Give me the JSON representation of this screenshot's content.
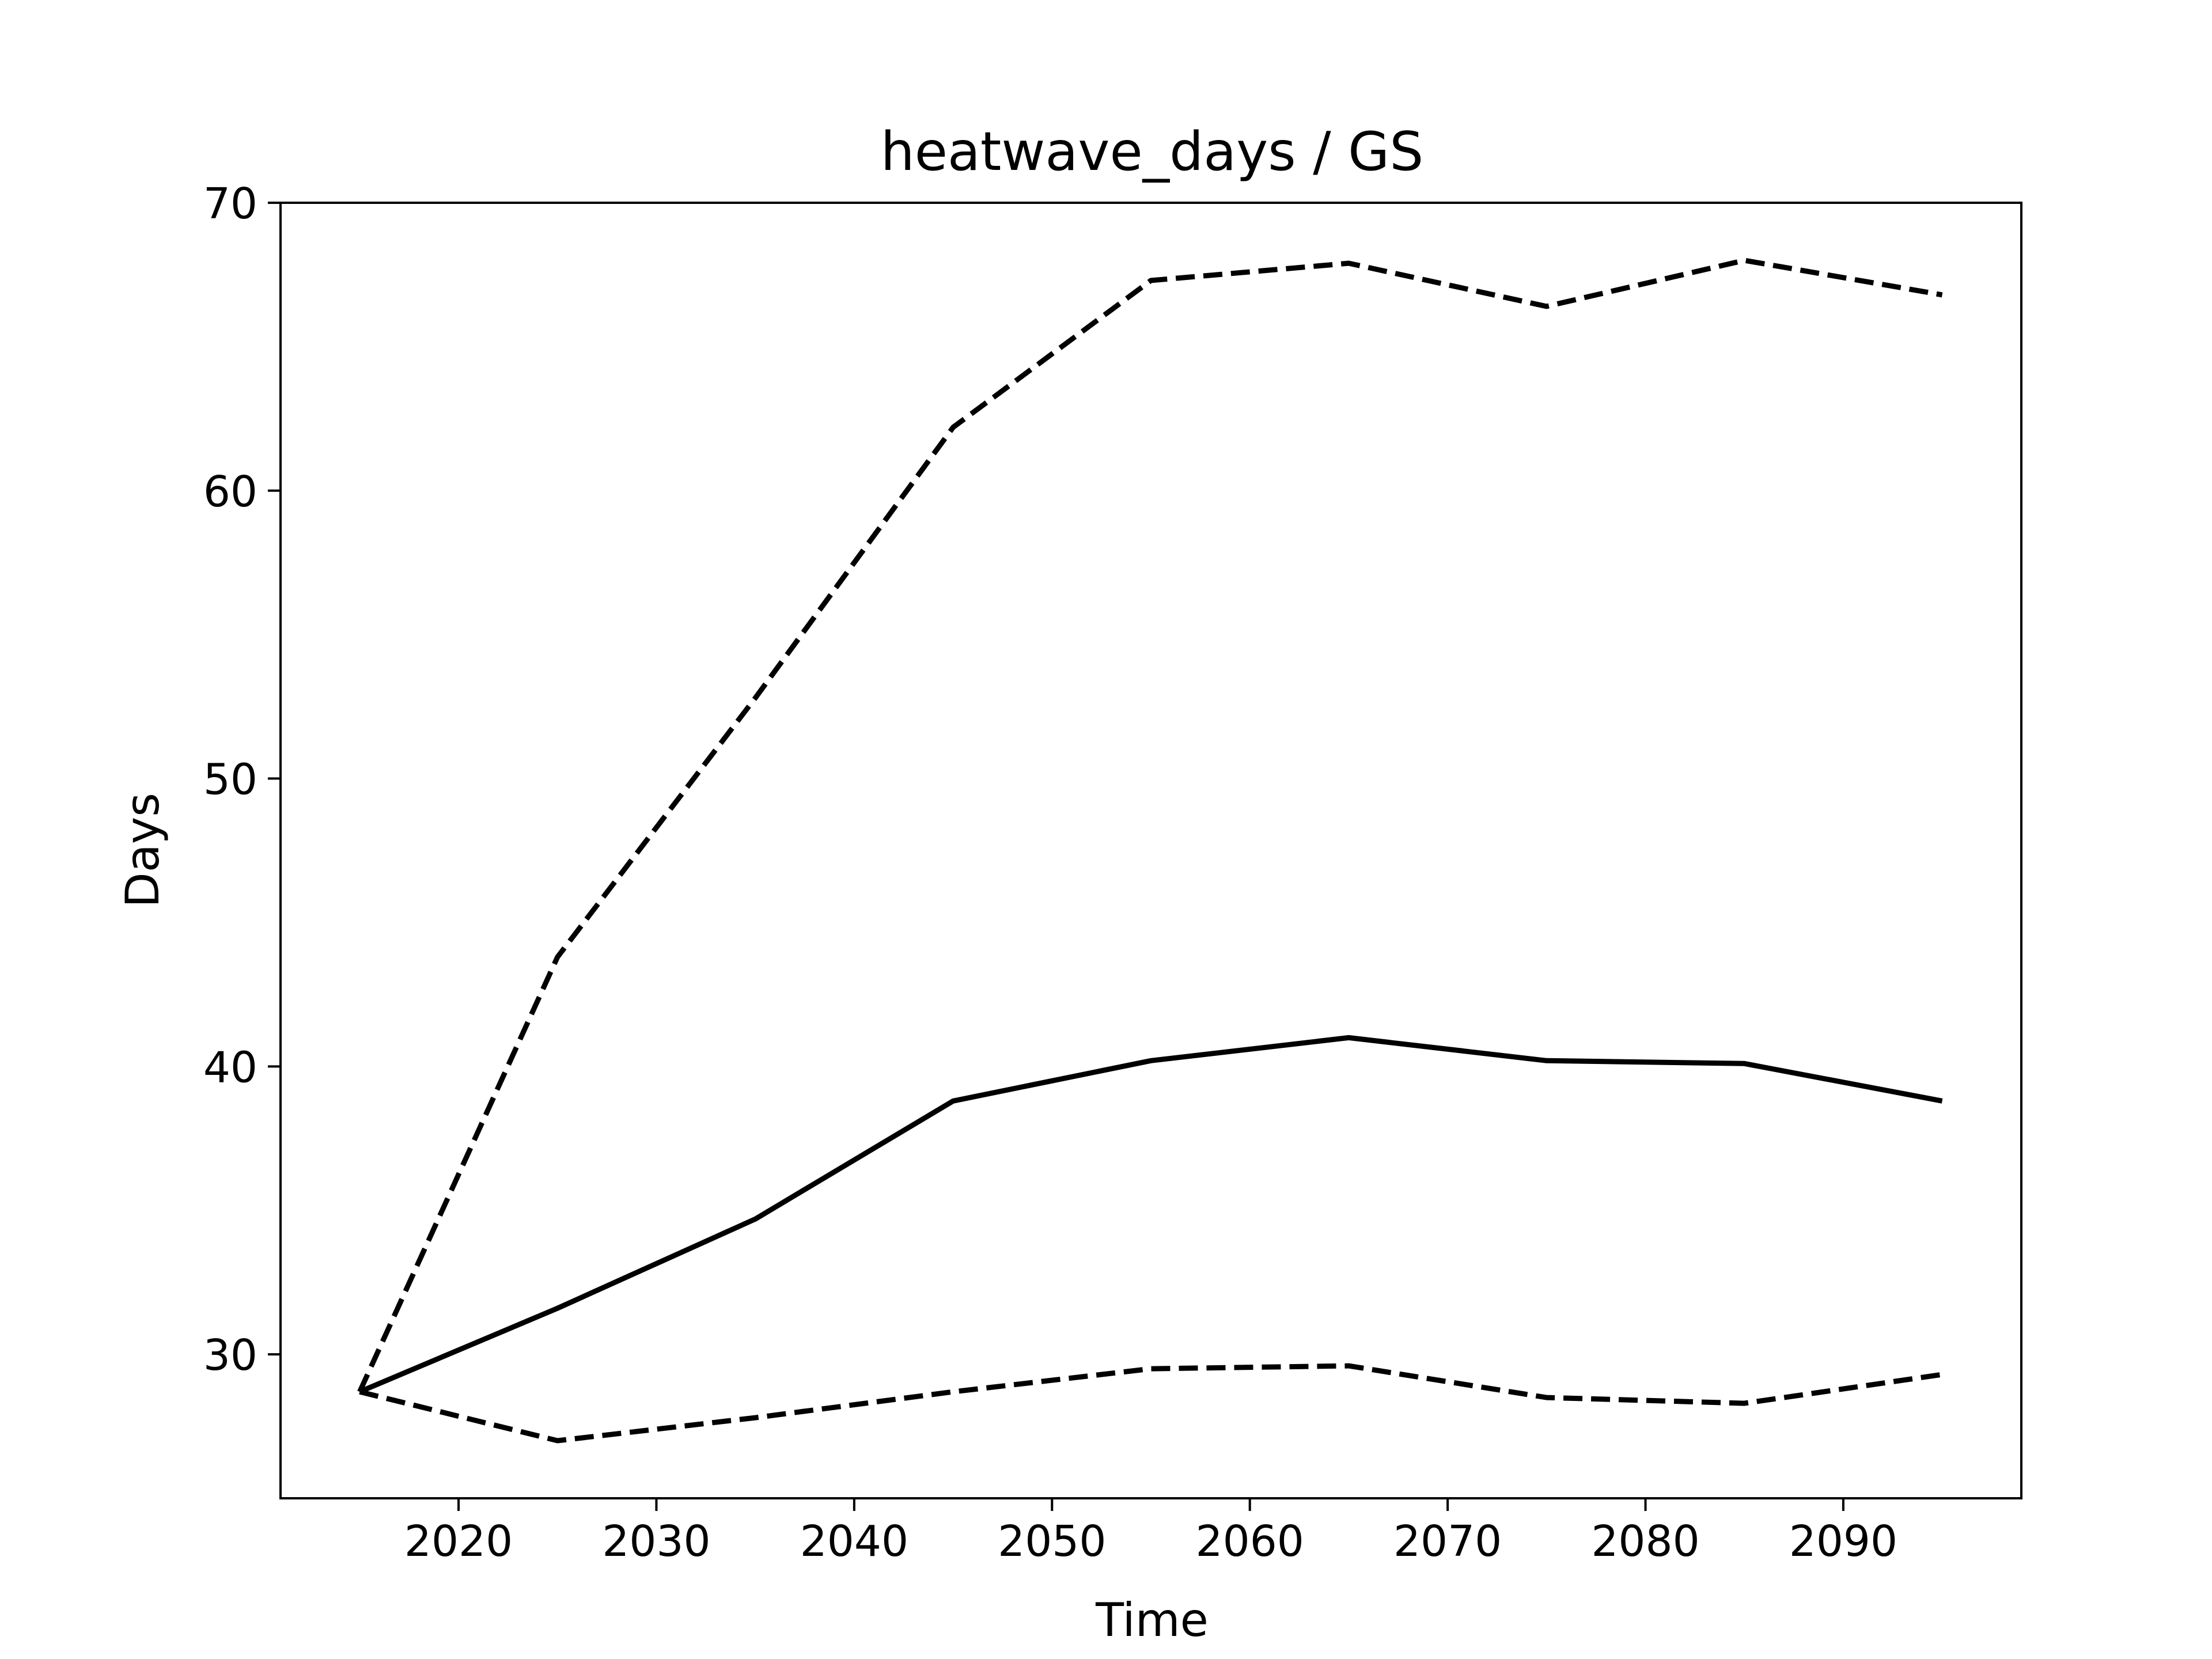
{
  "chart_data": {
    "type": "line",
    "title": "heatwave_days / GS",
    "xlabel": "Time",
    "ylabel": "Days",
    "xlim": [
      2011,
      2099
    ],
    "ylim": [
      25,
      70
    ],
    "xticks": [
      2020,
      2030,
      2040,
      2050,
      2060,
      2070,
      2080,
      2090
    ],
    "yticks": [
      30,
      40,
      50,
      60,
      70
    ],
    "grid": false,
    "legend": "none",
    "x": [
      2015,
      2025,
      2035,
      2045,
      2055,
      2065,
      2075,
      2085,
      2095
    ],
    "series": [
      {
        "style": "dashed",
        "color": "#000000",
        "values": [
          28.7,
          43.8,
          52.8,
          62.2,
          67.3,
          67.9,
          66.4,
          68.0,
          66.8
        ]
      },
      {
        "style": "solid",
        "color": "#000000",
        "values": [
          28.7,
          31.6,
          34.7,
          38.8,
          40.2,
          41.0,
          40.2,
          40.1,
          38.8
        ]
      },
      {
        "style": "dashed",
        "color": "#000000",
        "values": [
          28.7,
          27.0,
          27.8,
          28.7,
          29.5,
          29.6,
          28.5,
          28.3,
          29.3
        ]
      }
    ]
  }
}
